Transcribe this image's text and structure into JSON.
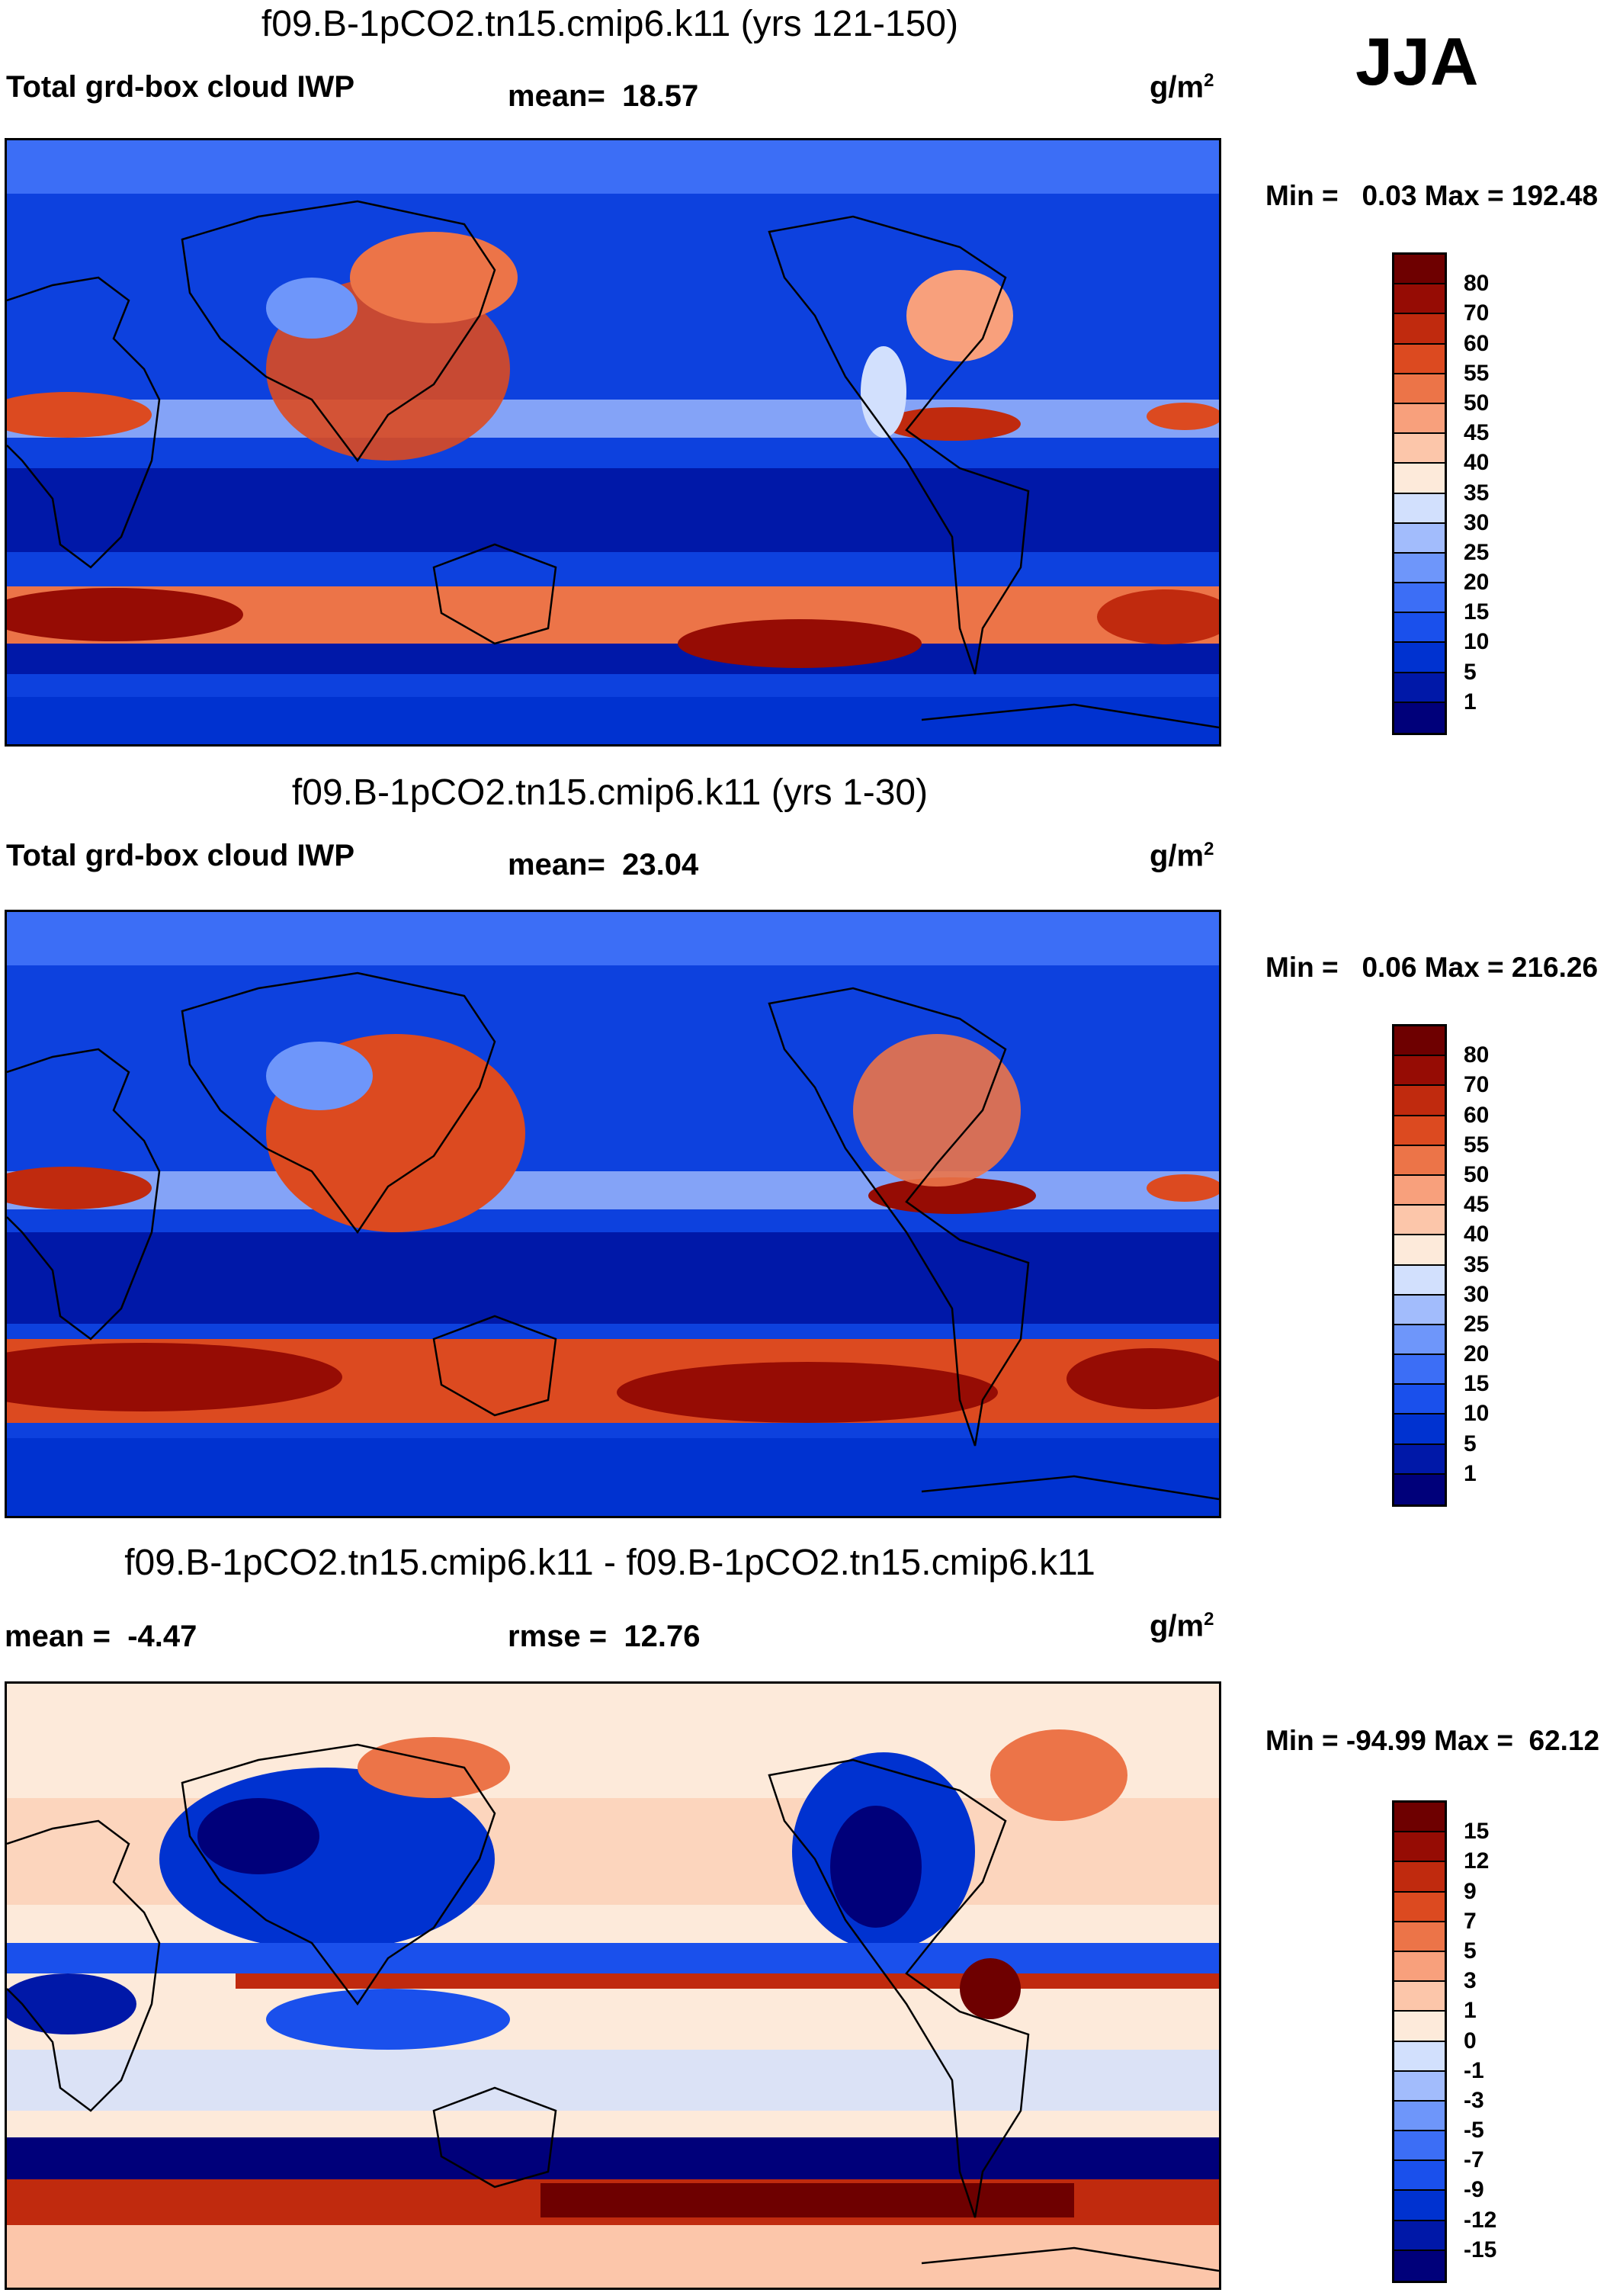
{
  "season": "JJA",
  "colors": {
    "full": [
      "#00007a",
      "#0018a8",
      "#0032d0",
      "#1a50ec",
      "#3c6ef6",
      "#6e96fa",
      "#a2bcfc",
      "#d2e0fd",
      "#fdeada",
      "#fcc6aa",
      "#f8a07c",
      "#ec7448",
      "#dc4a20",
      "#c02a0e",
      "#960c04",
      "#6e0000"
    ],
    "diff": [
      "#00007a",
      "#0018a8",
      "#0032d0",
      "#1a50ec",
      "#3c6ef6",
      "#6e96fa",
      "#a2bcfc",
      "#d2e0fd",
      "#fdeada",
      "#fcc6aa",
      "#f8a07c",
      "#ec7448",
      "#dc4a20",
      "#c02a0e",
      "#960c04",
      "#6e0000"
    ]
  },
  "panels": [
    {
      "title": "f09.B-1pCO2.tn15.cmip6.k11 (yrs 121-150)",
      "left_label": "Total grd-box cloud IWP",
      "stat_label": "mean=",
      "stat_value": "18.57",
      "unit": "g/m",
      "unit_sup": "2",
      "min_label": "Min =",
      "min_value": "0.03",
      "max_label": "Max =",
      "max_value": "192.48",
      "ticks": [
        "80",
        "70",
        "60",
        "55",
        "50",
        "45",
        "40",
        "35",
        "30",
        "25",
        "20",
        "15",
        "10",
        "5",
        "1"
      ]
    },
    {
      "title": "f09.B-1pCO2.tn15.cmip6.k11 (yrs 1-30)",
      "left_label": "Total grd-box cloud IWP",
      "stat_label": "mean=",
      "stat_value": "23.04",
      "unit": "g/m",
      "unit_sup": "2",
      "min_label": "Min =",
      "min_value": "0.06",
      "max_label": "Max =",
      "max_value": "216.26",
      "ticks": [
        "80",
        "70",
        "60",
        "55",
        "50",
        "45",
        "40",
        "35",
        "30",
        "25",
        "20",
        "15",
        "10",
        "5",
        "1"
      ]
    },
    {
      "title": "f09.B-1pCO2.tn15.cmip6.k11 - f09.B-1pCO2.tn15.cmip6.k11",
      "left_label": "mean =",
      "left_value": "-4.47",
      "stat_label": "rmse =",
      "stat_value": "12.76",
      "unit": "g/m",
      "unit_sup": "2",
      "min_label": "Min =",
      "min_value": "-94.99",
      "max_label": "Max =",
      "max_value": "62.12",
      "ticks": [
        "15",
        "12",
        "9",
        "7",
        "5",
        "3",
        "1",
        "0",
        "-1",
        "-3",
        "-5",
        "-7",
        "-9",
        "-12",
        "-15"
      ]
    }
  ]
}
